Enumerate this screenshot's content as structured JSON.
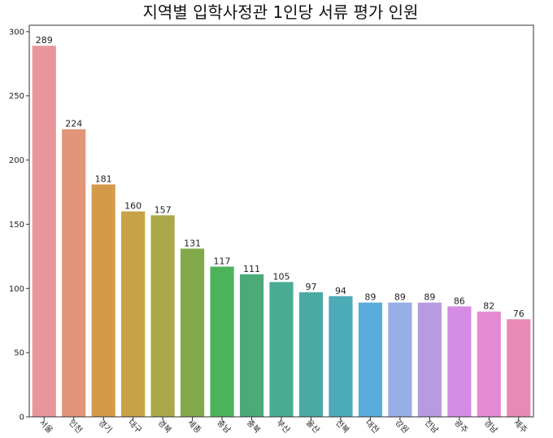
{
  "chart_data": {
    "type": "bar",
    "title": "지역별 입학사정관 1인당 서류 평가 인원",
    "xlabel": "",
    "ylabel": "",
    "ylim": [
      0,
      305
    ],
    "yticks": [
      0,
      50,
      100,
      150,
      200,
      250,
      300
    ],
    "grid": false,
    "legend": "none",
    "categories": [
      "서울",
      "인천",
      "경기",
      "대구",
      "경북",
      "세종",
      "충남",
      "충북",
      "부산",
      "울산",
      "전북",
      "대전",
      "강원",
      "전남",
      "광주",
      "경남",
      "제주"
    ],
    "values": [
      289,
      224,
      181,
      160,
      157,
      131,
      117,
      111,
      105,
      97,
      94,
      89,
      89,
      89,
      86,
      82,
      76
    ],
    "colors": [
      "#e8969b",
      "#e29578",
      "#d39b49",
      "#c8a245",
      "#aaa849",
      "#82a94b",
      "#4cb35b",
      "#4aaa78",
      "#4aab93",
      "#4ba9a5",
      "#4cabb6",
      "#59acd9",
      "#96aee4",
      "#b79be2",
      "#d48ce4",
      "#e48bd4",
      "#e98ab5"
    ]
  }
}
